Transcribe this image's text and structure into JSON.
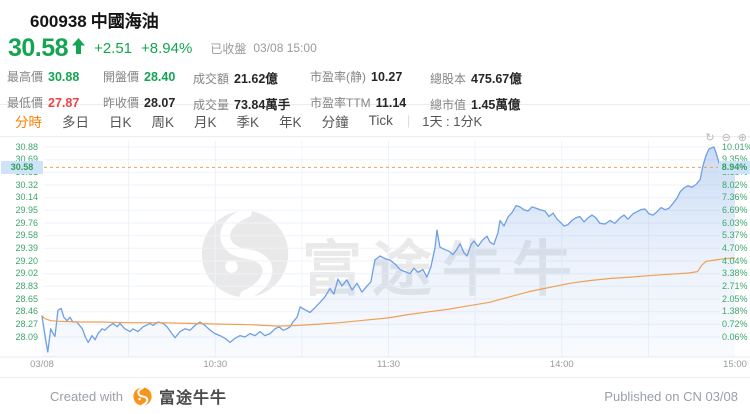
{
  "header": {
    "symbol": "600938",
    "name": "中國海油",
    "price": "30.58",
    "change": "+2.51",
    "change_pct": "+8.94%",
    "market_status": "已收盤",
    "timestamp": "03/08 15:00"
  },
  "stats": [
    {
      "label": "最高價",
      "value": "30.88",
      "color": "up"
    },
    {
      "label": "開盤價",
      "value": "28.40",
      "color": "up"
    },
    {
      "label": "成交額",
      "value": "21.62億",
      "color": "normal"
    },
    {
      "label": "市盈率(静)",
      "value": "10.27",
      "color": "normal"
    },
    {
      "label": "總股本",
      "value": "475.67億",
      "color": "normal"
    },
    {
      "label": "最低價",
      "value": "27.87",
      "color": "down"
    },
    {
      "label": "昨收價",
      "value": "28.07",
      "color": "normal"
    },
    {
      "label": "成交量",
      "value": "73.84萬手",
      "color": "normal"
    },
    {
      "label": "市盈率TTM",
      "value": "11.14",
      "color": "normal"
    },
    {
      "label": "總市值",
      "value": "1.45萬億",
      "color": "normal"
    }
  ],
  "tabs": {
    "items": [
      {
        "label": "分時",
        "active": true
      },
      {
        "label": "多日",
        "active": false
      },
      {
        "label": "日K",
        "active": false
      },
      {
        "label": "周K",
        "active": false
      },
      {
        "label": "月K",
        "active": false
      },
      {
        "label": "季K",
        "active": false
      },
      {
        "label": "年K",
        "active": false
      },
      {
        "label": "分鐘",
        "active": false
      },
      {
        "label": "Tick",
        "active": false
      }
    ],
    "separator": "|",
    "period_selector": "1天 : 1分K"
  },
  "chart_controls": {
    "reset": "↻",
    "zoom_out": "⊖",
    "zoom_in": "⊕"
  },
  "watermark": {
    "text": "富途牛牛"
  },
  "footer": {
    "created_with": "Created with",
    "brand": "富途牛牛",
    "published": "Published on CN 03/08"
  },
  "colors": {
    "up": "#15a552",
    "down": "#ee4444",
    "accent_orange": "#ff7d00",
    "price_line": "#6e9fe6",
    "avg_line": "#efa053",
    "current_dash": "#f0a053",
    "axis_label_green": "#3da56b",
    "marker_bg": "#cfe3f8",
    "gridline": "#eef2f9"
  },
  "chart_data": {
    "type": "line",
    "x_unit": "minutes_since_0930_lunch_excluded",
    "ylim": [
      28.09,
      30.88
    ],
    "prev_close": 28.07,
    "open": 28.4,
    "high": 30.88,
    "low": 27.87,
    "close": 30.58,
    "legend_position": "none",
    "grid": true,
    "price_ticks": [
      "30.88",
      "30.69",
      "30.51",
      "30.32",
      "30.14",
      "29.95",
      "29.76",
      "29.58",
      "29.39",
      "29.20",
      "29.02",
      "28.83",
      "28.65",
      "28.46",
      "28.27",
      "28.09"
    ],
    "pct_ticks": [
      "10.01%",
      "9.35%",
      "8.68%",
      "8.02%",
      "7.36%",
      "6.69%",
      "6.03%",
      "5.37%",
      "4.70%",
      "4.04%",
      "3.38%",
      "2.71%",
      "2.05%",
      "1.38%",
      "0.72%",
      "0.06%"
    ],
    "time_ticks": [
      {
        "t": 0,
        "label": "03/08"
      },
      {
        "t": 60,
        "label": "10:30"
      },
      {
        "t": 120,
        "label": "11:30"
      },
      {
        "t": 180,
        "label": "14:00"
      },
      {
        "t": 240,
        "label": "15:00"
      }
    ],
    "time_gridlines_min": [
      30,
      60,
      90,
      120,
      150,
      180,
      210
    ],
    "current": {
      "value": 30.58,
      "price_label": "30.58",
      "pct_label": "8.94%"
    },
    "series": [
      {
        "name": "price",
        "color": "#6e9fe6",
        "points": [
          [
            0,
            28.4
          ],
          [
            1,
            28.12
          ],
          [
            2,
            27.87
          ],
          [
            3,
            28.21
          ],
          [
            4,
            28.13
          ],
          [
            4.5,
            28.1
          ],
          [
            5.5,
            28.48
          ],
          [
            6.6,
            28.51
          ],
          [
            7.6,
            28.38
          ],
          [
            8.7,
            28.33
          ],
          [
            9.7,
            28.38
          ],
          [
            10.7,
            28.31
          ],
          [
            12,
            28.31
          ],
          [
            14,
            28.21
          ],
          [
            15,
            28.09
          ],
          [
            16,
            28.01
          ],
          [
            17.3,
            28.11
          ],
          [
            18.4,
            28.05
          ],
          [
            19.4,
            28.14
          ],
          [
            20.8,
            28.21
          ],
          [
            21.8,
            28.19
          ],
          [
            23,
            28.24
          ],
          [
            24.6,
            28.29
          ],
          [
            26,
            28.24
          ],
          [
            27,
            28.29
          ],
          [
            28.7,
            28.21
          ],
          [
            30.5,
            28.17
          ],
          [
            31.5,
            28.21
          ],
          [
            33.2,
            28.17
          ],
          [
            35,
            28.24
          ],
          [
            37.4,
            28.29
          ],
          [
            38.4,
            28.26
          ],
          [
            40.2,
            28.31
          ],
          [
            42,
            28.29
          ],
          [
            43.3,
            28.24
          ],
          [
            45,
            28.14
          ],
          [
            46.1,
            28.08
          ],
          [
            47.8,
            28.17
          ],
          [
            49.5,
            28.21
          ],
          [
            51.3,
            28.19
          ],
          [
            53,
            28.26
          ],
          [
            54.7,
            28.31
          ],
          [
            56.4,
            28.26
          ],
          [
            58.2,
            28.19
          ],
          [
            59.9,
            28.14
          ],
          [
            61.6,
            28.11
          ],
          [
            63.4,
            28.07
          ],
          [
            65.1,
            28.01
          ],
          [
            66.8,
            28.07
          ],
          [
            68.6,
            28.11
          ],
          [
            70.3,
            28.09
          ],
          [
            72,
            28.14
          ],
          [
            73.8,
            28.11
          ],
          [
            75.5,
            28.17
          ],
          [
            77.2,
            28.11
          ],
          [
            79,
            28.14
          ],
          [
            80.7,
            28.21
          ],
          [
            82.1,
            28.24
          ],
          [
            83.5,
            28.19
          ],
          [
            84.8,
            28.21
          ],
          [
            85.9,
            28.24
          ],
          [
            86.9,
            28.31
          ],
          [
            88.3,
            28.38
          ],
          [
            89.4,
            28.53
          ],
          [
            91.1,
            28.49
          ],
          [
            92.8,
            28.45
          ],
          [
            94.5,
            28.52
          ],
          [
            96.3,
            28.6
          ],
          [
            98,
            28.68
          ],
          [
            99.7,
            28.8
          ],
          [
            101.1,
            28.72
          ],
          [
            102.5,
            28.94
          ],
          [
            103.9,
            28.84
          ],
          [
            105.6,
            28.93
          ],
          [
            107.4,
            28.78
          ],
          [
            109.1,
            28.88
          ],
          [
            110.8,
            28.75
          ],
          [
            112.6,
            28.84
          ],
          [
            113.9,
            28.9
          ],
          [
            115.3,
            29.22
          ],
          [
            117.1,
            29.28
          ],
          [
            118.8,
            29.24
          ],
          [
            120.5,
            29.22
          ],
          [
            122.3,
            29.16
          ],
          [
            124,
            29.08
          ],
          [
            125.7,
            29.05
          ],
          [
            127.4,
            29.02
          ],
          [
            128.8,
            29.1
          ],
          [
            130.2,
            29.04
          ],
          [
            131.9,
            29.08
          ],
          [
            133.3,
            28.97
          ],
          [
            134.7,
            29.12
          ],
          [
            136.1,
            29.4
          ],
          [
            136.8,
            29.66
          ],
          [
            137.8,
            29.41
          ],
          [
            139.2,
            29.38
          ],
          [
            141,
            29.35
          ],
          [
            142.3,
            29.3
          ],
          [
            143.7,
            29.38
          ],
          [
            144.8,
            29.46
          ],
          [
            146.1,
            29.33
          ],
          [
            147.2,
            29.28
          ],
          [
            148.6,
            29.45
          ],
          [
            149.6,
            29.5
          ],
          [
            151,
            29.42
          ],
          [
            152.7,
            29.52
          ],
          [
            154.1,
            29.57
          ],
          [
            155.2,
            29.48
          ],
          [
            156.5,
            29.45
          ],
          [
            157.9,
            29.62
          ],
          [
            158.6,
            29.8
          ],
          [
            160,
            29.72
          ],
          [
            161.4,
            29.85
          ],
          [
            162.8,
            29.92
          ],
          [
            164.2,
            30.02
          ],
          [
            165.5,
            30.0
          ],
          [
            166.9,
            29.96
          ],
          [
            168.3,
            29.94
          ],
          [
            169.7,
            30.0
          ],
          [
            171.1,
            29.98
          ],
          [
            172.5,
            29.96
          ],
          [
            174.2,
            29.94
          ],
          [
            175.6,
            29.86
          ],
          [
            177,
            29.91
          ],
          [
            178.4,
            29.82
          ],
          [
            179.4,
            29.78
          ],
          [
            180.8,
            29.72
          ],
          [
            182.2,
            29.74
          ],
          [
            183.5,
            29.8
          ],
          [
            184.9,
            29.84
          ],
          [
            186.3,
            29.86
          ],
          [
            187.7,
            29.78
          ],
          [
            189.1,
            29.84
          ],
          [
            190.5,
            29.88
          ],
          [
            191.8,
            29.84
          ],
          [
            193.2,
            29.76
          ],
          [
            195,
            29.75
          ],
          [
            196.7,
            29.8
          ],
          [
            198.4,
            29.76
          ],
          [
            200.2,
            29.84
          ],
          [
            201.6,
            29.88
          ],
          [
            202.9,
            29.82
          ],
          [
            204.7,
            29.9
          ],
          [
            206.1,
            29.93
          ],
          [
            207.4,
            29.96
          ],
          [
            208.8,
            29.97
          ],
          [
            210.2,
            29.9
          ],
          [
            211.6,
            29.88
          ],
          [
            213,
            29.93
          ],
          [
            214.4,
            29.99
          ],
          [
            215.8,
            29.96
          ],
          [
            217.1,
            29.98
          ],
          [
            218.5,
            30.05
          ],
          [
            219.9,
            30.13
          ],
          [
            221,
            30.22
          ],
          [
            222.3,
            30.28
          ],
          [
            223.7,
            30.31
          ],
          [
            225.1,
            30.29
          ],
          [
            226.5,
            30.33
          ],
          [
            227.9,
            30.4
          ],
          [
            228.9,
            30.6
          ],
          [
            230,
            30.76
          ],
          [
            231,
            30.85
          ],
          [
            232,
            30.87
          ],
          [
            232.7,
            30.88
          ],
          [
            233.4,
            30.8
          ],
          [
            234.1,
            30.7
          ],
          [
            234.8,
            30.6
          ],
          [
            235.8,
            30.56
          ],
          [
            236.8,
            30.57
          ],
          [
            237.9,
            30.56
          ],
          [
            238.9,
            30.58
          ],
          [
            240,
            30.58
          ]
        ]
      },
      {
        "name": "avg_price",
        "color": "#efa053",
        "points": [
          [
            0,
            28.4
          ],
          [
            1,
            28.36
          ],
          [
            3,
            28.33
          ],
          [
            6,
            28.32
          ],
          [
            13,
            28.31
          ],
          [
            20,
            28.31
          ],
          [
            30,
            28.3
          ],
          [
            41,
            28.3
          ],
          [
            51,
            28.29
          ],
          [
            62,
            28.28
          ],
          [
            72,
            28.27
          ],
          [
            82,
            28.25
          ],
          [
            89,
            28.26
          ],
          [
            96,
            28.28
          ],
          [
            103,
            28.3
          ],
          [
            110,
            28.33
          ],
          [
            120,
            28.37
          ],
          [
            127,
            28.42
          ],
          [
            134,
            28.46
          ],
          [
            141,
            28.5
          ],
          [
            148,
            28.55
          ],
          [
            155,
            28.6
          ],
          [
            162,
            28.68
          ],
          [
            169,
            28.76
          ],
          [
            176,
            28.82
          ],
          [
            183,
            28.88
          ],
          [
            190,
            28.92
          ],
          [
            197,
            28.95
          ],
          [
            204,
            28.97
          ],
          [
            210,
            28.99
          ],
          [
            217,
            29.01
          ],
          [
            224,
            29.03
          ],
          [
            227,
            29.05
          ],
          [
            228.6,
            29.15
          ],
          [
            230,
            29.2
          ],
          [
            233,
            29.22
          ],
          [
            236.5,
            29.24
          ],
          [
            240,
            29.25
          ]
        ]
      }
    ]
  }
}
